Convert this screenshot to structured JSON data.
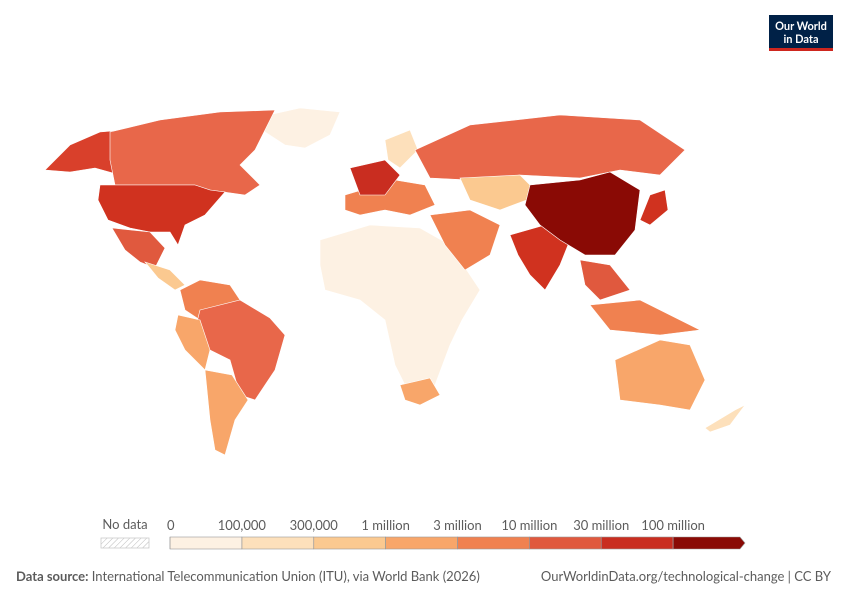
{
  "logo": {
    "line1": "Our World",
    "line2": "in Data"
  },
  "legend": {
    "no_data": "No data",
    "ticks": [
      0,
      {
        "value": 100000,
        "label": "100,000"
      },
      {
        "value": 300000,
        "label": "300,000"
      },
      {
        "value": 1000000,
        "label": "1 million"
      },
      {
        "value": 3000000,
        "label": "3 million"
      },
      {
        "value": 10000000,
        "label": "10 million"
      },
      {
        "value": 30000000,
        "label": "30 million"
      },
      {
        "value": 100000000,
        "label": "100 million"
      }
    ],
    "colors": [
      "#fdf1e3",
      "#fde0bb",
      "#fbc990",
      "#f8a66a",
      "#f08150",
      "#e0593e",
      "#c92d20",
      "#8a0a05"
    ]
  },
  "footer": {
    "source_label": "Data source:",
    "source_text": "International Telecommunication Union (ITU), via World Bank (2026)",
    "url": "OurWorldinData.org/technological-change | CC BY"
  }
}
